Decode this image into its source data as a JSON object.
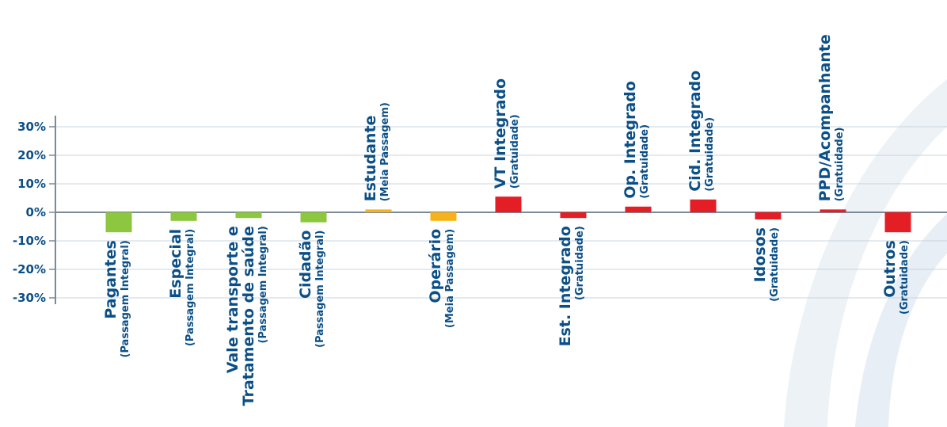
{
  "chart_data": {
    "type": "bar",
    "title": "",
    "xlabel": "",
    "ylabel": "",
    "ylim": [
      -30,
      30
    ],
    "yticks": [
      30,
      20,
      10,
      0,
      -10,
      -20,
      -30
    ],
    "ytick_labels": [
      "30%",
      "20%",
      "10%",
      "0%",
      "-10%",
      "-20%",
      "-30%"
    ],
    "grid": true,
    "legend": "none",
    "colors": {
      "green": "#8dc63f",
      "orange": "#f6b21b",
      "red": "#e31e24",
      "axis": "#7a8a99",
      "grid": "#c9d4de",
      "text": "#0b4f86"
    },
    "categories": [
      {
        "lines": [
          "Pagantes"
        ],
        "sub": "(Passagem Integral)",
        "value": -7,
        "color": "green"
      },
      {
        "lines": [
          "Especial"
        ],
        "sub": "(Passagem Integral)",
        "value": -3,
        "color": "green"
      },
      {
        "lines": [
          "Vale transporte e",
          "Tratamento de saúde"
        ],
        "sub": "(Passagem Integral)",
        "value": -2,
        "color": "green"
      },
      {
        "lines": [
          "Cidadão"
        ],
        "sub": "(Passagem Integral)",
        "value": -3.5,
        "color": "green"
      },
      {
        "lines": [
          "Estudante"
        ],
        "sub": "(Meia Passagem)",
        "value": 1,
        "color": "orange"
      },
      {
        "lines": [
          "Operário"
        ],
        "sub": "(Meia Passagem)",
        "value": -3,
        "color": "orange"
      },
      {
        "lines": [
          "VT Integrado"
        ],
        "sub": "(Gratuidade)",
        "value": 5.5,
        "color": "red"
      },
      {
        "lines": [
          "Est. Integrado"
        ],
        "sub": "(Gratuidade)",
        "value": -2,
        "color": "red"
      },
      {
        "lines": [
          "Op. Integrado"
        ],
        "sub": "(Gratuidade)",
        "value": 2,
        "color": "red"
      },
      {
        "lines": [
          "Cid. Integrado"
        ],
        "sub": "(Gratuidade)",
        "value": 4.5,
        "color": "red"
      },
      {
        "lines": [
          "Idosos"
        ],
        "sub": "(Gratuidade)",
        "value": -2.5,
        "color": "red"
      },
      {
        "lines": [
          "PPD/Acompanhante"
        ],
        "sub": "(Gratuidade)",
        "value": 1,
        "color": "red"
      },
      {
        "lines": [
          "Outros"
        ],
        "sub": "(Gratuidade)",
        "value": -7,
        "color": "red"
      }
    ]
  }
}
